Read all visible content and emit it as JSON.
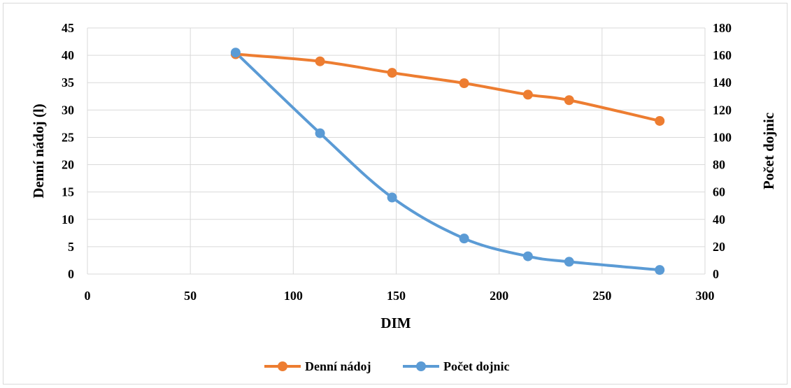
{
  "chart_data": {
    "type": "line",
    "xlabel": "DIM",
    "ylabel": "Denní nádoj  (l)",
    "y2label": "Počet dojnic",
    "xlim": [
      0,
      300
    ],
    "ylim": [
      0,
      45
    ],
    "y2lim": [
      0,
      180
    ],
    "x_ticks": [
      "0",
      "50",
      "100",
      "150",
      "200",
      "250",
      "300"
    ],
    "y_ticks": [
      "0",
      "5",
      "10",
      "15",
      "20",
      "25",
      "30",
      "35",
      "40",
      "45"
    ],
    "y2_ticks": [
      "0",
      "20",
      "40",
      "60",
      "80",
      "100",
      "120",
      "140",
      "160",
      "180"
    ],
    "grid": true,
    "legend_position": "bottom",
    "series": [
      {
        "name": "Denní nádoj",
        "axis": "left",
        "color": "#ED7D31",
        "x": [
          72,
          113,
          148,
          183,
          214,
          234,
          278
        ],
        "y": [
          40.2,
          38.9,
          36.8,
          34.9,
          32.8,
          31.8,
          28.0
        ]
      },
      {
        "name": "Počet dojnic",
        "axis": "right",
        "color": "#5B9BD5",
        "x": [
          72,
          113,
          148,
          183,
          214,
          234,
          278
        ],
        "y": [
          162,
          103,
          56,
          26,
          13,
          9,
          3
        ]
      }
    ]
  }
}
